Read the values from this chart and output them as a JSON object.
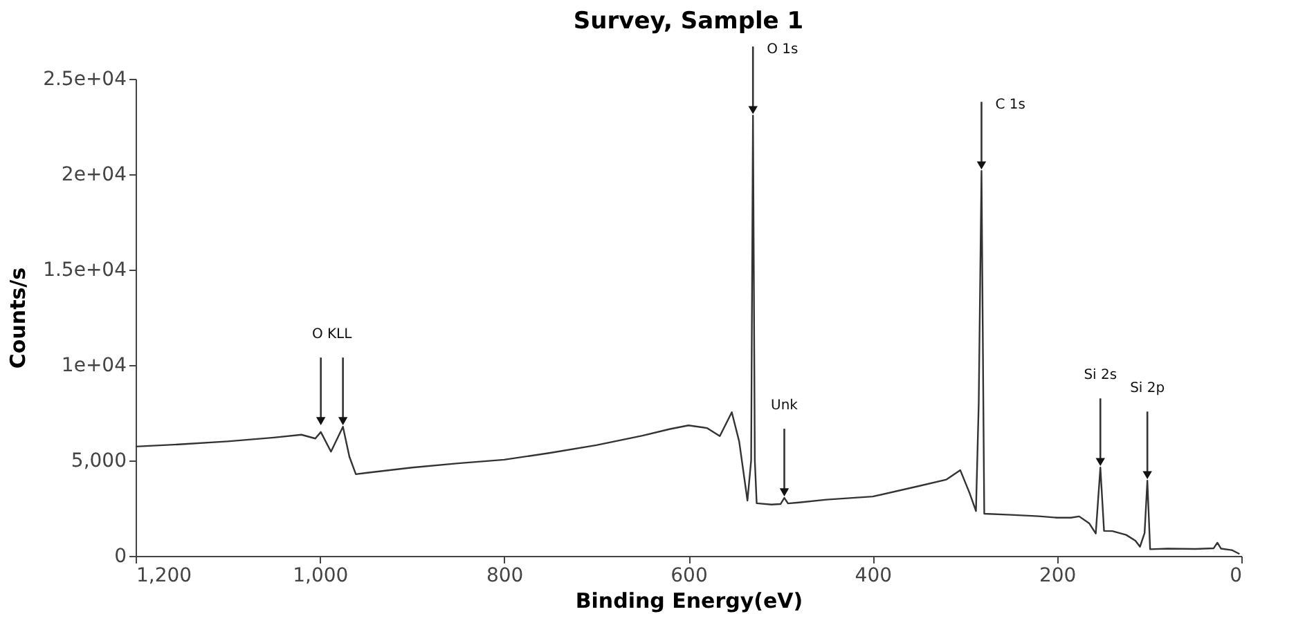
{
  "chart_data": {
    "type": "line",
    "title": "Survey, Sample 1",
    "xlabel": "Binding Energy(eV)",
    "ylabel": "Counts/s",
    "x": [
      1200,
      1150,
      1100,
      1050,
      1020,
      1005,
      999,
      988,
      975,
      968,
      961,
      950,
      900,
      850,
      800,
      750,
      700,
      650,
      620,
      600,
      580,
      566,
      553,
      545,
      536,
      532,
      530,
      528,
      526,
      510,
      500,
      496,
      492,
      480,
      450,
      400,
      350,
      320,
      305,
      295,
      288,
      285,
      282,
      280,
      279,
      250,
      220,
      200,
      185,
      176,
      165,
      158,
      153,
      149,
      140,
      125,
      115,
      110,
      105,
      102,
      99,
      80,
      50,
      30,
      26,
      22,
      10,
      2
    ],
    "series": [
      {
        "color": "#333333",
        "values": [
          5730,
          5850,
          6000,
          6200,
          6350,
          6150,
          6490,
          5460,
          6770,
          5200,
          4280,
          4350,
          4630,
          4850,
          5040,
          5400,
          5800,
          6300,
          6650,
          6840,
          6700,
          6280,
          7530,
          6000,
          2900,
          5000,
          23070,
          5000,
          2760,
          2690,
          2720,
          3040,
          2750,
          2800,
          2950,
          3110,
          3660,
          4000,
          4490,
          3300,
          2350,
          8000,
          20170,
          8000,
          2210,
          2150,
          2080,
          2000,
          2000,
          2070,
          1700,
          1170,
          4630,
          1310,
          1300,
          1100,
          800,
          480,
          1200,
          3940,
          350,
          380,
          360,
          400,
          690,
          380,
          300,
          100
        ]
      }
    ],
    "xlim": [
      1200,
      0
    ],
    "xticks": [
      {
        "value": 1200,
        "label": "1,200"
      },
      {
        "value": 1000,
        "label": "1,000"
      },
      800,
      600,
      400,
      200,
      0
    ],
    "ylim": [
      0,
      25000
    ],
    "yticks": [
      0,
      {
        "value": 5000,
        "label": "5,000"
      },
      {
        "value": 10000,
        "label": "1e+04"
      },
      {
        "value": 15000,
        "label": "1.5e+04"
      },
      {
        "value": 20000,
        "label": "2e+04"
      },
      {
        "value": 25000,
        "label": "2.5e+04"
      }
    ],
    "grid": false,
    "marker": "none",
    "line_style": "solid",
    "annotations": [
      {
        "text": "O KLL",
        "x": 975,
        "y": 6770
      },
      {
        "text": "O 1s",
        "x": 530,
        "y": 23070
      },
      {
        "text": "Unk",
        "x": 496,
        "y": 3040
      },
      {
        "text": "C 1s",
        "x": 282,
        "y": 20170
      },
      {
        "text": "Si 2s",
        "x": 153,
        "y": 4630
      },
      {
        "text": "Si 2p",
        "x": 102,
        "y": 3940
      }
    ]
  }
}
